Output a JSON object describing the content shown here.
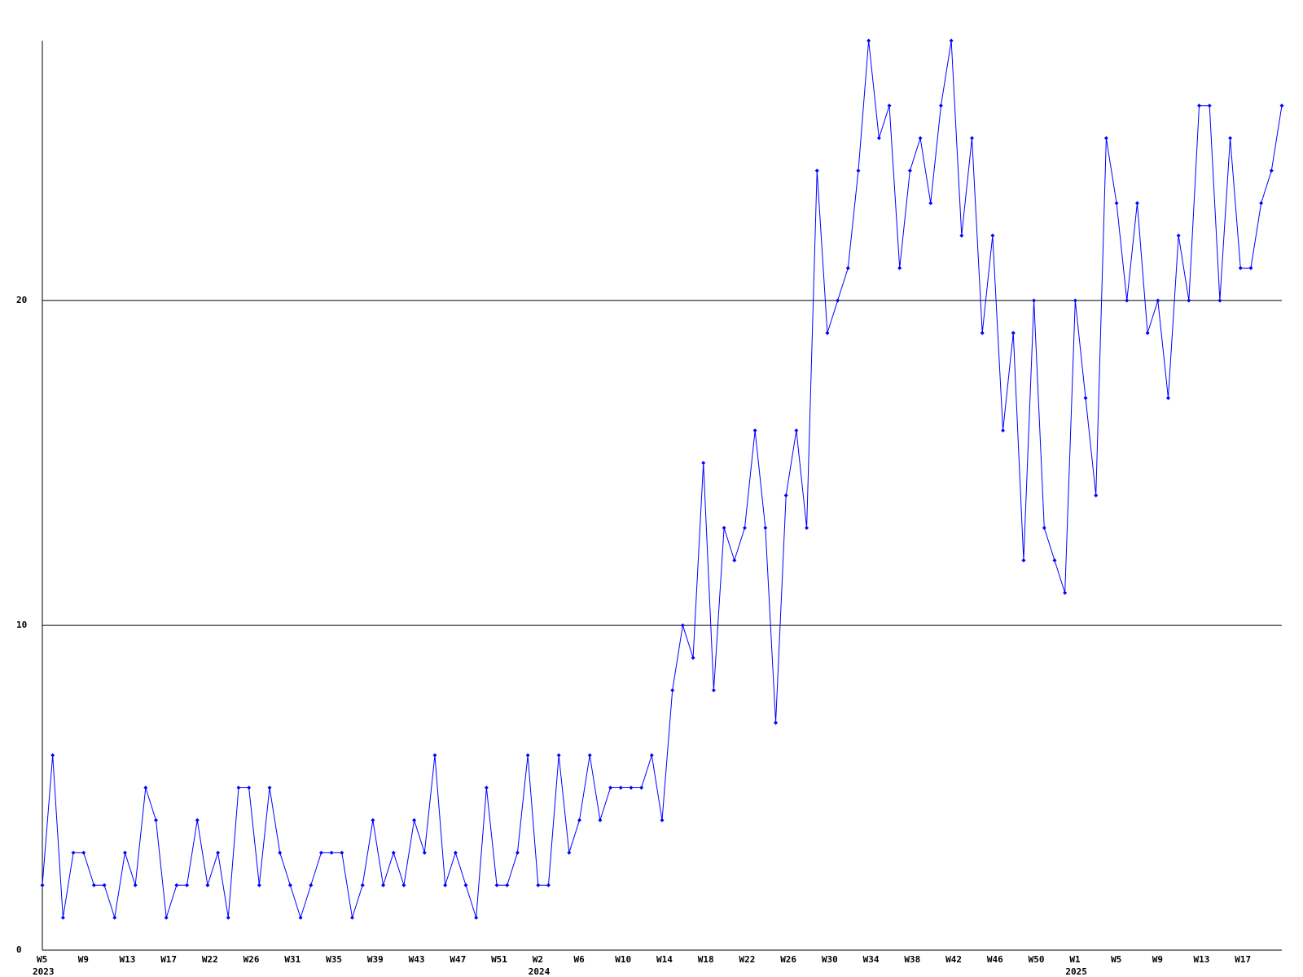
{
  "chart_data": {
    "type": "line",
    "categories": [
      "W5",
      null,
      null,
      null,
      "W9",
      null,
      null,
      null,
      "W13",
      null,
      null,
      null,
      "W17",
      null,
      null,
      null,
      "W22",
      null,
      null,
      null,
      "W26",
      null,
      null,
      null,
      "W31",
      null,
      null,
      null,
      "W35",
      null,
      null,
      null,
      "W39",
      null,
      null,
      null,
      "W43",
      null,
      null,
      null,
      "W47",
      null,
      null,
      null,
      "W51",
      null,
      null,
      null,
      "W2",
      null,
      null,
      null,
      "W6",
      null,
      null,
      null,
      "W10",
      null,
      null,
      null,
      "W14",
      null,
      null,
      null,
      "W18",
      null,
      null,
      null,
      "W22",
      null,
      null,
      null,
      "W26",
      null,
      null,
      null,
      "W30",
      null,
      null,
      null,
      "W34",
      null,
      null,
      null,
      "W38",
      null,
      null,
      null,
      "W42",
      null,
      null,
      null,
      "W46",
      null,
      null,
      null,
      "W50",
      null,
      null,
      null,
      "W1",
      null,
      null,
      null,
      "W5",
      null,
      null,
      null,
      "W9",
      null,
      null,
      null,
      "W13",
      null,
      null,
      null,
      "W17",
      null,
      null,
      null,
      null
    ],
    "year_labels": [
      "2023",
      null,
      null,
      null,
      null,
      null,
      null,
      null,
      null,
      null,
      null,
      null,
      null,
      null,
      null,
      null,
      null,
      null,
      null,
      null,
      null,
      null,
      null,
      null,
      null,
      null,
      null,
      null,
      null,
      null,
      null,
      null,
      null,
      null,
      null,
      null,
      null,
      null,
      null,
      null,
      null,
      null,
      null,
      null,
      null,
      null,
      null,
      null,
      "2024",
      null,
      null,
      null,
      null,
      null,
      null,
      null,
      null,
      null,
      null,
      null,
      null,
      null,
      null,
      null,
      null,
      null,
      null,
      null,
      null,
      null,
      null,
      null,
      null,
      null,
      null,
      null,
      null,
      null,
      null,
      null,
      null,
      null,
      null,
      null,
      null,
      null,
      null,
      null,
      null,
      null,
      null,
      null,
      null,
      null,
      null,
      null,
      null,
      null,
      null,
      null,
      "2025",
      null,
      null,
      null,
      null,
      null,
      null,
      null,
      null,
      null,
      null,
      null,
      null,
      null,
      null,
      null,
      null,
      null,
      null,
      null,
      null
    ],
    "values": [
      2,
      6,
      1,
      3,
      3,
      2,
      2,
      1,
      3,
      2,
      5,
      4,
      1,
      2,
      2,
      4,
      2,
      3,
      1,
      5,
      5,
      2,
      5,
      3,
      2,
      1,
      2,
      3,
      3,
      3,
      1,
      2,
      4,
      2,
      3,
      2,
      4,
      3,
      6,
      2,
      3,
      2,
      1,
      5,
      2,
      2,
      3,
      6,
      2,
      2,
      6,
      3,
      4,
      6,
      4,
      5,
      5,
      5,
      5,
      6,
      4,
      8,
      10,
      9,
      15,
      8,
      13,
      12,
      13,
      16,
      13,
      7,
      14,
      16,
      13,
      24,
      19,
      20,
      21,
      24,
      28,
      25,
      26,
      21,
      24,
      25,
      23,
      26,
      28,
      22,
      25,
      19,
      22,
      16,
      19,
      12,
      20,
      13,
      12,
      11,
      20,
      17,
      14,
      25,
      23,
      20,
      23,
      19,
      20,
      17,
      22,
      20,
      26,
      26,
      20,
      25,
      21,
      21,
      23,
      24,
      26
    ],
    "color": "#0000ff",
    "ylim": [
      0,
      28
    ],
    "yticks": [
      0,
      10,
      20
    ],
    "grid": true
  }
}
